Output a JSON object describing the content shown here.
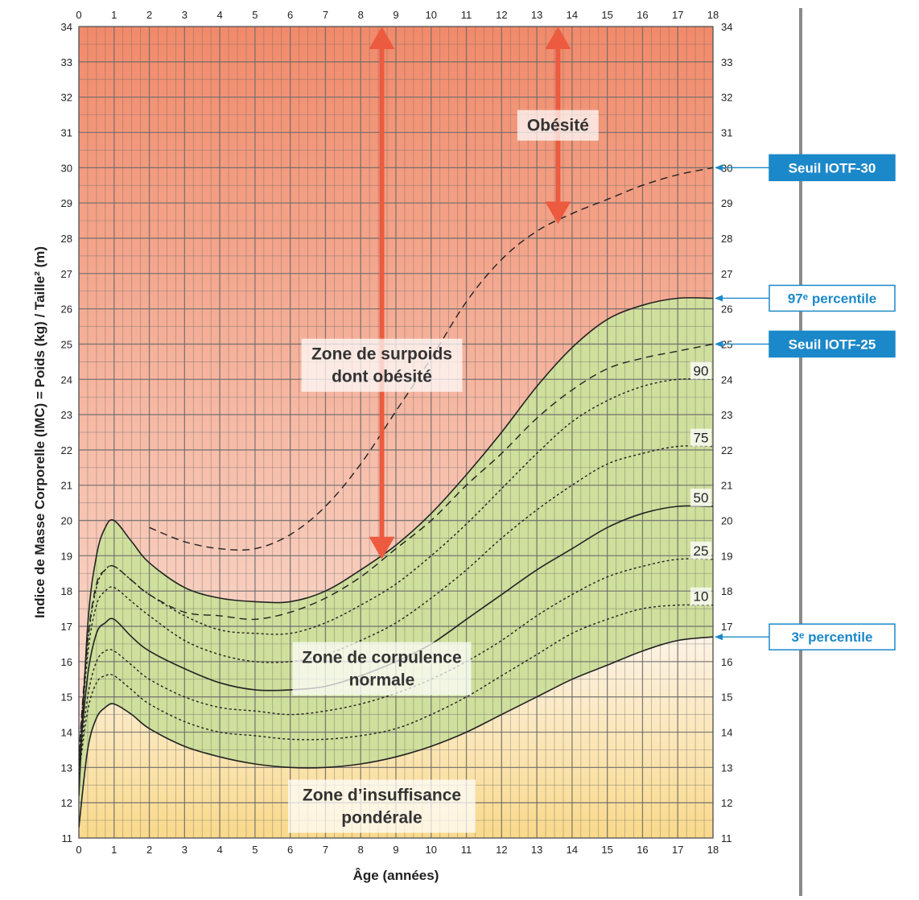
{
  "chart_data": {
    "type": "line",
    "xlabel": "Âge (années)",
    "ylabel": "Indice de Masse Corporelle (IMC) = Poids (kg) / Taille² (m)",
    "xlim": [
      0,
      18
    ],
    "ylim": [
      11,
      34
    ],
    "x_ticks": [
      0,
      1,
      2,
      3,
      4,
      5,
      6,
      7,
      8,
      9,
      10,
      11,
      12,
      13,
      14,
      15,
      16,
      17,
      18
    ],
    "y_ticks": [
      11,
      12,
      13,
      14,
      15,
      16,
      17,
      18,
      19,
      20,
      21,
      22,
      23,
      24,
      25,
      26,
      27,
      28,
      29,
      30,
      31,
      32,
      33,
      34
    ],
    "grid": true,
    "series": [
      {
        "name": "97e percentile",
        "style": "solid",
        "color": "#222222",
        "x": [
          0,
          0.25,
          0.5,
          0.75,
          1,
          1.5,
          2,
          3,
          4,
          5,
          6,
          7,
          8,
          9,
          10,
          11,
          12,
          13,
          14,
          15,
          16,
          17,
          18
        ],
        "y": [
          12.2,
          17,
          19,
          19.8,
          20,
          19.4,
          18.8,
          18.1,
          17.8,
          17.7,
          17.7,
          18,
          18.6,
          19.3,
          20.2,
          21.3,
          22.5,
          23.8,
          24.9,
          25.7,
          26.1,
          26.3,
          26.3
        ]
      },
      {
        "name": "Seuil IOTF-30",
        "style": "dashed",
        "color": "#222222",
        "x": [
          2,
          3,
          4,
          5,
          6,
          7,
          8,
          9,
          10,
          11,
          12,
          13,
          14,
          15,
          16,
          17,
          18
        ],
        "y": [
          19.8,
          19.4,
          19.2,
          19.2,
          19.6,
          20.4,
          21.6,
          23.1,
          24.6,
          26.2,
          27.4,
          28.2,
          28.7,
          29.1,
          29.5,
          29.8,
          30.0
        ]
      },
      {
        "name": "Seuil IOTF-25",
        "style": "dashed",
        "color": "#222222",
        "x": [
          0,
          0.25,
          0.5,
          0.75,
          1,
          1.5,
          2,
          3,
          4,
          5,
          6,
          7,
          8,
          9,
          10,
          11,
          12,
          13,
          14,
          15,
          16,
          17,
          18
        ],
        "y": [
          13.4,
          16.6,
          18.2,
          18.6,
          18.7,
          18.3,
          17.9,
          17.4,
          17.3,
          17.2,
          17.4,
          17.8,
          18.4,
          19.2,
          20,
          21,
          21.9,
          22.9,
          23.7,
          24.3,
          24.6,
          24.8,
          25.0
        ]
      },
      {
        "name": "90",
        "style": "dotted",
        "color": "#222222",
        "x": [
          0,
          0.25,
          0.5,
          0.75,
          1,
          1.5,
          2,
          3,
          4,
          5,
          6,
          7,
          8,
          9,
          10,
          11,
          12,
          13,
          14,
          15,
          16,
          17,
          18
        ],
        "y": [
          13.3,
          16.5,
          18.1,
          18.6,
          18.7,
          18.3,
          17.9,
          17.3,
          16.9,
          16.8,
          16.8,
          17.1,
          17.6,
          18.2,
          19,
          19.9,
          20.9,
          21.9,
          22.8,
          23.4,
          23.8,
          24,
          24
        ],
        "label": "90"
      },
      {
        "name": "75",
        "style": "dotted",
        "color": "#222222",
        "x": [
          0,
          0.25,
          0.5,
          0.75,
          1,
          1.5,
          2,
          3,
          4,
          5,
          6,
          7,
          8,
          9,
          10,
          11,
          12,
          13,
          14,
          15,
          16,
          17,
          18
        ],
        "y": [
          13.2,
          16.2,
          17.6,
          18,
          18.1,
          17.7,
          17.3,
          16.6,
          16.2,
          16,
          16,
          16.2,
          16.6,
          17.1,
          17.8,
          18.6,
          19.5,
          20.3,
          21,
          21.6,
          21.9,
          22.1,
          22.1
        ],
        "label": "75"
      },
      {
        "name": "50",
        "style": "solid",
        "color": "#222222",
        "x": [
          0,
          0.25,
          0.5,
          0.75,
          1,
          1.5,
          2,
          3,
          4,
          5,
          6,
          7,
          8,
          9,
          10,
          11,
          12,
          13,
          14,
          15,
          16,
          17,
          18
        ],
        "y": [
          13,
          15.6,
          16.8,
          17.1,
          17.2,
          16.7,
          16.3,
          15.8,
          15.4,
          15.2,
          15.2,
          15.3,
          15.6,
          16,
          16.5,
          17.2,
          17.9,
          18.6,
          19.2,
          19.8,
          20.2,
          20.4,
          20.4
        ],
        "label": "50"
      },
      {
        "name": "25",
        "style": "dotted",
        "color": "#222222",
        "x": [
          0,
          0.25,
          0.5,
          0.75,
          1,
          1.5,
          2,
          3,
          4,
          5,
          6,
          7,
          8,
          9,
          10,
          11,
          12,
          13,
          14,
          15,
          16,
          17,
          18
        ],
        "y": [
          12.9,
          15,
          16,
          16.3,
          16.3,
          15.9,
          15.5,
          15,
          14.7,
          14.6,
          14.5,
          14.6,
          14.8,
          15.1,
          15.5,
          16,
          16.6,
          17.3,
          17.9,
          18.4,
          18.7,
          18.9,
          18.9
        ],
        "label": "25"
      },
      {
        "name": "10",
        "style": "dotted",
        "color": "#222222",
        "x": [
          0,
          0.25,
          0.5,
          0.75,
          1,
          1.5,
          2,
          3,
          4,
          5,
          6,
          7,
          8,
          9,
          10,
          11,
          12,
          13,
          14,
          15,
          16,
          17,
          18
        ],
        "y": [
          12.8,
          14.6,
          15.4,
          15.6,
          15.6,
          15.2,
          14.8,
          14.3,
          14,
          13.9,
          13.8,
          13.8,
          13.9,
          14.1,
          14.5,
          15,
          15.6,
          16.2,
          16.8,
          17.2,
          17.5,
          17.6,
          17.6
        ],
        "label": "10"
      },
      {
        "name": "3e percentile",
        "style": "solid",
        "color": "#222222",
        "x": [
          0,
          0.25,
          0.5,
          0.75,
          1,
          1.5,
          2,
          3,
          4,
          5,
          6,
          7,
          8,
          9,
          10,
          11,
          12,
          13,
          14,
          15,
          16,
          17,
          18
        ],
        "y": [
          11.3,
          13.5,
          14.4,
          14.7,
          14.8,
          14.5,
          14.1,
          13.6,
          13.3,
          13.1,
          13,
          13,
          13.1,
          13.3,
          13.6,
          14,
          14.5,
          15,
          15.5,
          15.9,
          16.3,
          16.6,
          16.7
        ]
      }
    ],
    "zones": [
      {
        "id": "surpoids",
        "lines": [
          "Zone de surpoids",
          "dont obésité"
        ],
        "x": 8.6,
        "y": 24.4
      },
      {
        "id": "obesite",
        "lines": [
          "Obésité"
        ],
        "x": 13.6,
        "y": 31.2
      },
      {
        "id": "normale",
        "lines": [
          "Zone de corpulence",
          "normale"
        ],
        "x": 8.6,
        "y": 15.8
      },
      {
        "id": "insuffisance",
        "lines": [
          "Zone d’insuffisance",
          "pondérale"
        ],
        "x": 8.6,
        "y": 11.9
      }
    ],
    "callouts": [
      {
        "label": "Seuil IOTF-30",
        "y": 30,
        "style": "filled"
      },
      {
        "label": "97ᵉ percentile",
        "y": 26.3,
        "style": "outlined"
      },
      {
        "label": "Seuil IOTF-25",
        "y": 25,
        "style": "filled"
      },
      {
        "label": "3ᵉ percentile",
        "y": 16.7,
        "style": "outlined"
      }
    ],
    "arrows": [
      {
        "x": 8.6,
        "y_from": 18.9,
        "y_to": 34
      },
      {
        "x": 13.6,
        "y_from": 28.4,
        "y_to": 34
      }
    ],
    "colors": {
      "overweight_top": "#f18a6a",
      "overweight_bottom": "#fbe6dc",
      "underweight_top": "#fdf3e6",
      "underweight_bottom": "#f9d98a",
      "normal_fill": "#cfdf9c",
      "grid": "#6b6b6b",
      "arrow": "#ec5b3f",
      "callout": "#1b88c9"
    }
  }
}
